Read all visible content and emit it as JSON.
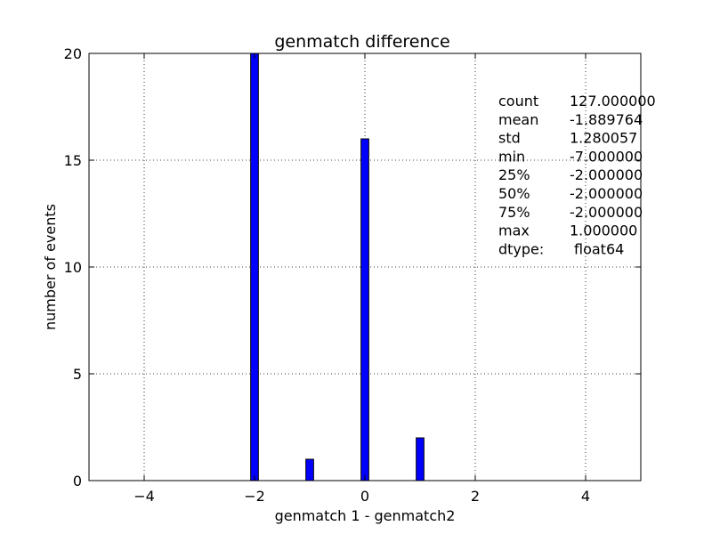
{
  "chart_data": {
    "type": "bar",
    "title": "genmatch difference",
    "xlabel": "genmatch 1 - genmatch2",
    "ylabel": "number of events",
    "xlim": [
      -5,
      5
    ],
    "ylim": [
      0,
      20
    ],
    "xticks": [
      -4,
      -2,
      0,
      2,
      4
    ],
    "xtick_labels": [
      "−4",
      "−2",
      "0",
      "2",
      "4"
    ],
    "yticks": [
      0,
      5,
      10,
      15,
      20
    ],
    "ytick_labels": [
      "0",
      "5",
      "10",
      "15",
      "20"
    ],
    "grid": true,
    "bar_color": "#0000ff",
    "bar_edge_color": "#000000",
    "bar_width": 0.14,
    "bars": [
      {
        "x": -2,
        "value": 20
      },
      {
        "x": -1,
        "value": 1
      },
      {
        "x": 0,
        "value": 16
      },
      {
        "x": 1,
        "value": 2
      }
    ],
    "annotation": [
      {
        "key": "count",
        "value": "127.000000"
      },
      {
        "key": "mean",
        "value": "-1.889764"
      },
      {
        "key": "std",
        "value": "1.280057"
      },
      {
        "key": "min",
        "value": "-7.000000"
      },
      {
        "key": "25%",
        "value": "-2.000000"
      },
      {
        "key": "50%",
        "value": "-2.000000"
      },
      {
        "key": "75%",
        "value": "-2.000000"
      },
      {
        "key": "max",
        "value": "1.000000"
      },
      {
        "key": "dtype:",
        "value": "float64"
      }
    ]
  }
}
